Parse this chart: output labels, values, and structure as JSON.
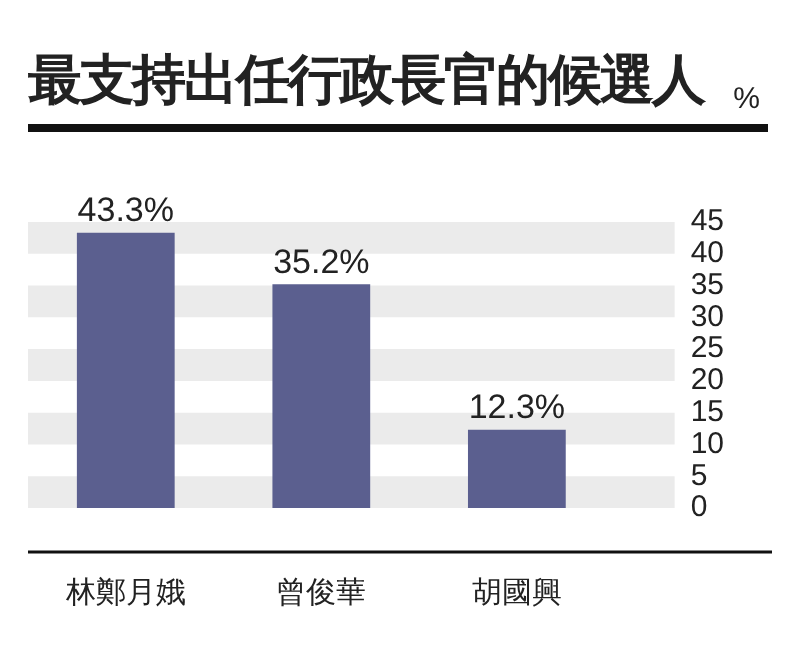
{
  "chart_data": {
    "type": "bar",
    "title": "最支持出任行政長官的候選人",
    "ylabel": "%",
    "categories": [
      "林鄭月娥",
      "曾俊華",
      "胡國興"
    ],
    "values": [
      43.3,
      35.2,
      12.3
    ],
    "color": "#5b5f8f",
    "value_labels": [
      "43.3%",
      "35.2%",
      "12.3%"
    ],
    "ylim": [
      0,
      45
    ],
    "yticks": [
      0,
      5,
      10,
      15,
      20,
      25,
      30,
      35,
      40,
      45
    ],
    "bands": [
      {
        "axis": "y",
        "from": 0,
        "to": 5,
        "color": "#ebebeb"
      },
      {
        "axis": "y",
        "from": 10,
        "to": 15,
        "color": "#ebebeb"
      },
      {
        "axis": "y",
        "from": 20,
        "to": 25,
        "color": "#ebebeb"
      },
      {
        "axis": "y",
        "from": 30,
        "to": 35,
        "color": "#ebebeb"
      },
      {
        "axis": "y",
        "from": 40,
        "to": 45,
        "color": "#ebebeb"
      }
    ],
    "legend": false
  }
}
